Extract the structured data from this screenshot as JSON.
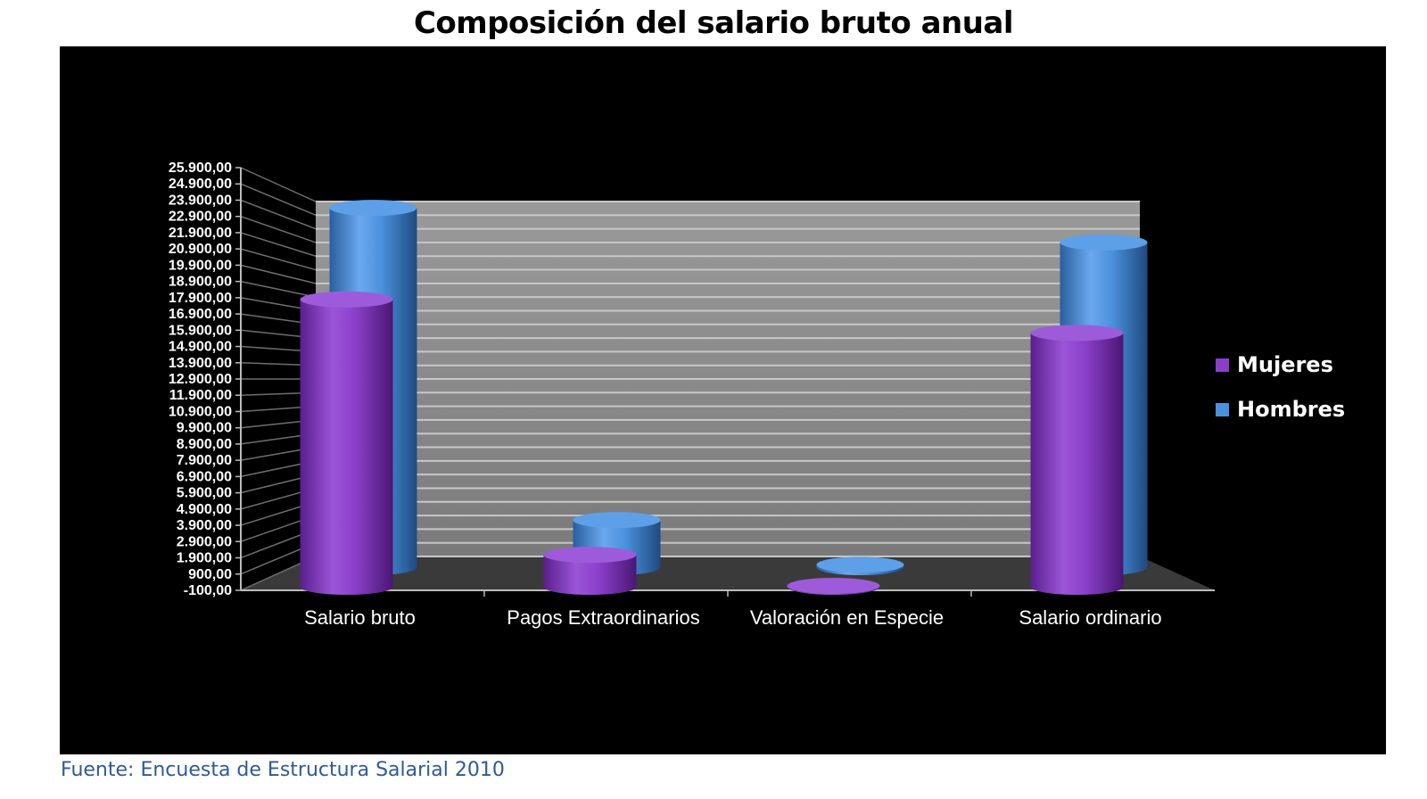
{
  "title": "Composición del salario bruto anual",
  "source": "Fuente: Encuesta de Estructura Salarial 2010",
  "chart_data": {
    "type": "bar",
    "style": "3d-cylinder",
    "title": "Composición del salario bruto anual",
    "categories": [
      "Salario bruto",
      "Pagos Extraordinarios",
      "Valoración en Especie",
      "Salario ordinario"
    ],
    "series": [
      {
        "name": "Mujeres",
        "color": "#8a3fc9",
        "values": [
          18900,
          2100,
          60,
          16700
        ]
      },
      {
        "name": "Hombres",
        "color": "#4a90dc",
        "values": [
          22900,
          3000,
          150,
          20700
        ]
      }
    ],
    "yticks": [
      "-100,00",
      "900,00",
      "1.900,00",
      "2.900,00",
      "3.900,00",
      "4.900,00",
      "5.900,00",
      "6.900,00",
      "7.900,00",
      "8.900,00",
      "9.900,00",
      "10.900,00",
      "11.900,00",
      "12.900,00",
      "13.900,00",
      "14.900,00",
      "15.900,00",
      "16.900,00",
      "17.900,00",
      "18.900,00",
      "19.900,00",
      "20.900,00",
      "21.900,00",
      "22.900,00",
      "23.900,00",
      "24.900,00",
      "25.900,00"
    ],
    "ylim": [
      -100,
      25900
    ],
    "legend_position": "right",
    "grid": true,
    "colors": {
      "background": "#000000",
      "back_wall": "#8c8c8c",
      "floor": "#3a3a3a",
      "grid_line": "#c8c8c8",
      "mujeres": "#8a3fc9",
      "hombres": "#4a90dc"
    }
  }
}
